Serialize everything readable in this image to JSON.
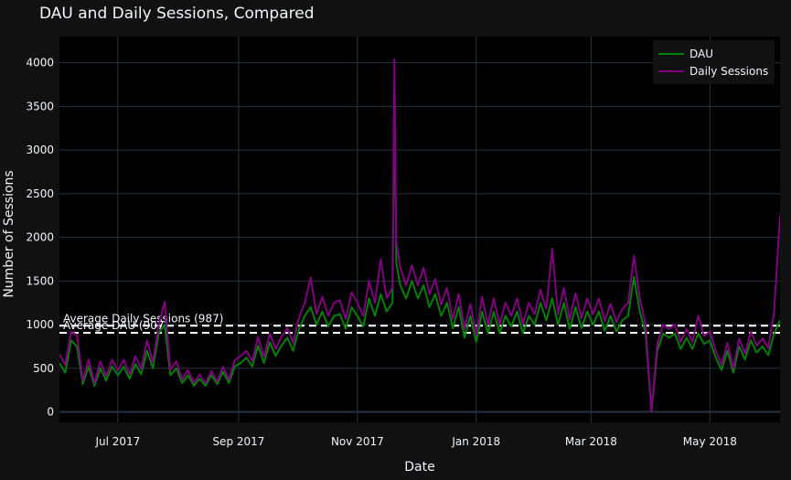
{
  "chart_data": {
    "type": "line",
    "title": "DAU and Daily Sessions, Compared",
    "xlabel": "Date",
    "ylabel": "Number of Sessions",
    "xlim": [
      "2017-06-01",
      "2018-06-06"
    ],
    "ylim": [
      -120,
      4300
    ],
    "x_ticks": [
      {
        "date": "2017-07-01",
        "label": "Jul 2017"
      },
      {
        "date": "2017-09-01",
        "label": "Sep 2017"
      },
      {
        "date": "2017-11-01",
        "label": "Nov 2017"
      },
      {
        "date": "2018-01-01",
        "label": "Jan 2018"
      },
      {
        "date": "2018-03-01",
        "label": "Mar 2018"
      },
      {
        "date": "2018-05-01",
        "label": "May 2018"
      }
    ],
    "y_ticks": [
      0,
      500,
      1000,
      1500,
      2000,
      2500,
      3000,
      3500,
      4000
    ],
    "grid": true,
    "legend_position": "top-right",
    "colors": {
      "dau": "#008000",
      "sessions": "#800080",
      "average_line": "#ffffff",
      "background": "#000000",
      "paper": "#111111",
      "grid": "#283442"
    },
    "series": [
      {
        "name": "DAU",
        "color": "#008000",
        "points": [
          [
            "2017-06-01",
            560
          ],
          [
            "2017-06-04",
            450
          ],
          [
            "2017-06-07",
            820
          ],
          [
            "2017-06-10",
            750
          ],
          [
            "2017-06-13",
            320
          ],
          [
            "2017-06-16",
            520
          ],
          [
            "2017-06-19",
            300
          ],
          [
            "2017-06-22",
            500
          ],
          [
            "2017-06-25",
            360
          ],
          [
            "2017-06-28",
            520
          ],
          [
            "2017-07-01",
            420
          ],
          [
            "2017-07-04",
            520
          ],
          [
            "2017-07-07",
            380
          ],
          [
            "2017-07-10",
            550
          ],
          [
            "2017-07-13",
            430
          ],
          [
            "2017-07-16",
            700
          ],
          [
            "2017-07-19",
            500
          ],
          [
            "2017-07-22",
            900
          ],
          [
            "2017-07-25",
            1000
          ],
          [
            "2017-07-28",
            420
          ],
          [
            "2017-07-31",
            500
          ],
          [
            "2017-08-03",
            330
          ],
          [
            "2017-08-06",
            420
          ],
          [
            "2017-08-09",
            300
          ],
          [
            "2017-08-12",
            380
          ],
          [
            "2017-08-15",
            300
          ],
          [
            "2017-08-18",
            420
          ],
          [
            "2017-08-21",
            320
          ],
          [
            "2017-08-24",
            460
          ],
          [
            "2017-08-27",
            330
          ],
          [
            "2017-08-30",
            520
          ],
          [
            "2017-09-02",
            560
          ],
          [
            "2017-09-05",
            620
          ],
          [
            "2017-09-08",
            520
          ],
          [
            "2017-09-11",
            760
          ],
          [
            "2017-09-14",
            560
          ],
          [
            "2017-09-17",
            800
          ],
          [
            "2017-09-20",
            640
          ],
          [
            "2017-09-23",
            760
          ],
          [
            "2017-09-26",
            850
          ],
          [
            "2017-09-29",
            700
          ],
          [
            "2017-10-02",
            950
          ],
          [
            "2017-10-05",
            1100
          ],
          [
            "2017-10-08",
            1200
          ],
          [
            "2017-10-11",
            1000
          ],
          [
            "2017-10-14",
            1150
          ],
          [
            "2017-10-17",
            980
          ],
          [
            "2017-10-20",
            1100
          ],
          [
            "2017-10-23",
            1120
          ],
          [
            "2017-10-26",
            950
          ],
          [
            "2017-10-29",
            1200
          ],
          [
            "2017-11-01",
            1100
          ],
          [
            "2017-11-04",
            980
          ],
          [
            "2017-11-07",
            1300
          ],
          [
            "2017-11-10",
            1100
          ],
          [
            "2017-11-13",
            1350
          ],
          [
            "2017-11-16",
            1150
          ],
          [
            "2017-11-19",
            1250
          ],
          [
            "2017-11-20",
            3650
          ],
          [
            "2017-11-21",
            1700
          ],
          [
            "2017-11-23",
            1450
          ],
          [
            "2017-11-26",
            1300
          ],
          [
            "2017-11-29",
            1500
          ],
          [
            "2017-12-02",
            1300
          ],
          [
            "2017-12-05",
            1450
          ],
          [
            "2017-12-08",
            1200
          ],
          [
            "2017-12-11",
            1350
          ],
          [
            "2017-12-14",
            1100
          ],
          [
            "2017-12-17",
            1250
          ],
          [
            "2017-12-20",
            960
          ],
          [
            "2017-12-23",
            1200
          ],
          [
            "2017-12-26",
            850
          ],
          [
            "2017-12-29",
            1100
          ],
          [
            "2018-01-01",
            800
          ],
          [
            "2018-01-04",
            1150
          ],
          [
            "2018-01-07",
            900
          ],
          [
            "2018-01-10",
            1150
          ],
          [
            "2018-01-13",
            900
          ],
          [
            "2018-01-16",
            1100
          ],
          [
            "2018-01-19",
            980
          ],
          [
            "2018-01-22",
            1150
          ],
          [
            "2018-01-25",
            900
          ],
          [
            "2018-01-28",
            1100
          ],
          [
            "2018-01-31",
            1000
          ],
          [
            "2018-02-03",
            1250
          ],
          [
            "2018-02-06",
            1050
          ],
          [
            "2018-02-09",
            1300
          ],
          [
            "2018-02-12",
            1000
          ],
          [
            "2018-02-15",
            1250
          ],
          [
            "2018-02-18",
            950
          ],
          [
            "2018-02-21",
            1200
          ],
          [
            "2018-02-24",
            960
          ],
          [
            "2018-02-27",
            1150
          ],
          [
            "2018-03-02",
            1000
          ],
          [
            "2018-03-05",
            1150
          ],
          [
            "2018-03-08",
            930
          ],
          [
            "2018-03-11",
            1100
          ],
          [
            "2018-03-14",
            920
          ],
          [
            "2018-03-17",
            1050
          ],
          [
            "2018-03-20",
            1100
          ],
          [
            "2018-03-23",
            1550
          ],
          [
            "2018-03-26",
            1150
          ],
          [
            "2018-03-29",
            900
          ],
          [
            "2018-04-01",
            0
          ],
          [
            "2018-04-04",
            700
          ],
          [
            "2018-04-07",
            900
          ],
          [
            "2018-04-10",
            850
          ],
          [
            "2018-04-13",
            900
          ],
          [
            "2018-04-16",
            720
          ],
          [
            "2018-04-19",
            850
          ],
          [
            "2018-04-22",
            720
          ],
          [
            "2018-04-25",
            900
          ],
          [
            "2018-04-28",
            780
          ],
          [
            "2018-05-01",
            820
          ],
          [
            "2018-05-04",
            620
          ],
          [
            "2018-05-07",
            480
          ],
          [
            "2018-05-10",
            700
          ],
          [
            "2018-05-13",
            450
          ],
          [
            "2018-05-16",
            750
          ],
          [
            "2018-05-19",
            600
          ],
          [
            "2018-05-22",
            820
          ],
          [
            "2018-05-25",
            680
          ],
          [
            "2018-05-28",
            750
          ],
          [
            "2018-05-31",
            650
          ],
          [
            "2018-06-03",
            900
          ],
          [
            "2018-06-06",
            1050
          ]
        ]
      },
      {
        "name": "Daily Sessions",
        "color": "#800080",
        "points": [
          [
            "2017-06-01",
            660
          ],
          [
            "2017-06-04",
            540
          ],
          [
            "2017-06-07",
            920
          ],
          [
            "2017-06-10",
            880
          ],
          [
            "2017-06-13",
            360
          ],
          [
            "2017-06-16",
            600
          ],
          [
            "2017-06-19",
            330
          ],
          [
            "2017-06-22",
            580
          ],
          [
            "2017-06-25",
            410
          ],
          [
            "2017-06-28",
            600
          ],
          [
            "2017-07-01",
            470
          ],
          [
            "2017-07-04",
            600
          ],
          [
            "2017-07-07",
            430
          ],
          [
            "2017-07-10",
            640
          ],
          [
            "2017-07-13",
            490
          ],
          [
            "2017-07-16",
            820
          ],
          [
            "2017-07-19",
            570
          ],
          [
            "2017-07-22",
            1000
          ],
          [
            "2017-07-25",
            1260
          ],
          [
            "2017-07-28",
            480
          ],
          [
            "2017-07-31",
            580
          ],
          [
            "2017-08-03",
            370
          ],
          [
            "2017-08-06",
            480
          ],
          [
            "2017-08-09",
            330
          ],
          [
            "2017-08-12",
            430
          ],
          [
            "2017-08-15",
            330
          ],
          [
            "2017-08-18",
            470
          ],
          [
            "2017-08-21",
            350
          ],
          [
            "2017-08-24",
            520
          ],
          [
            "2017-08-27",
            370
          ],
          [
            "2017-08-30",
            590
          ],
          [
            "2017-09-02",
            640
          ],
          [
            "2017-09-05",
            700
          ],
          [
            "2017-09-08",
            580
          ],
          [
            "2017-09-11",
            860
          ],
          [
            "2017-09-14",
            630
          ],
          [
            "2017-09-17",
            900
          ],
          [
            "2017-09-20",
            720
          ],
          [
            "2017-09-23",
            860
          ],
          [
            "2017-09-26",
            960
          ],
          [
            "2017-09-29",
            790
          ],
          [
            "2017-10-02",
            1080
          ],
          [
            "2017-10-05",
            1250
          ],
          [
            "2017-10-08",
            1540
          ],
          [
            "2017-10-11",
            1120
          ],
          [
            "2017-10-14",
            1320
          ],
          [
            "2017-10-17",
            1100
          ],
          [
            "2017-10-20",
            1250
          ],
          [
            "2017-10-23",
            1280
          ],
          [
            "2017-10-26",
            1060
          ],
          [
            "2017-10-29",
            1370
          ],
          [
            "2017-11-01",
            1250
          ],
          [
            "2017-11-04",
            1100
          ],
          [
            "2017-11-07",
            1500
          ],
          [
            "2017-11-10",
            1250
          ],
          [
            "2017-11-13",
            1750
          ],
          [
            "2017-11-16",
            1300
          ],
          [
            "2017-11-19",
            1420
          ],
          [
            "2017-11-20",
            4040
          ],
          [
            "2017-11-21",
            1950
          ],
          [
            "2017-11-23",
            1650
          ],
          [
            "2017-11-26",
            1450
          ],
          [
            "2017-11-29",
            1680
          ],
          [
            "2017-12-02",
            1450
          ],
          [
            "2017-12-05",
            1650
          ],
          [
            "2017-12-08",
            1350
          ],
          [
            "2017-12-11",
            1520
          ],
          [
            "2017-12-14",
            1230
          ],
          [
            "2017-12-17",
            1420
          ],
          [
            "2017-12-20",
            1060
          ],
          [
            "2017-12-23",
            1350
          ],
          [
            "2017-12-26",
            950
          ],
          [
            "2017-12-29",
            1240
          ],
          [
            "2018-01-01",
            880
          ],
          [
            "2018-01-04",
            1320
          ],
          [
            "2018-01-07",
            1000
          ],
          [
            "2018-01-10",
            1300
          ],
          [
            "2018-01-13",
            1000
          ],
          [
            "2018-01-16",
            1250
          ],
          [
            "2018-01-19",
            1100
          ],
          [
            "2018-01-22",
            1300
          ],
          [
            "2018-01-25",
            1000
          ],
          [
            "2018-01-28",
            1250
          ],
          [
            "2018-01-31",
            1120
          ],
          [
            "2018-02-03",
            1400
          ],
          [
            "2018-02-06",
            1180
          ],
          [
            "2018-02-09",
            1870
          ],
          [
            "2018-02-12",
            1120
          ],
          [
            "2018-02-15",
            1420
          ],
          [
            "2018-02-18",
            1060
          ],
          [
            "2018-02-21",
            1360
          ],
          [
            "2018-02-24",
            1070
          ],
          [
            "2018-02-27",
            1300
          ],
          [
            "2018-03-02",
            1120
          ],
          [
            "2018-03-05",
            1300
          ],
          [
            "2018-03-08",
            1040
          ],
          [
            "2018-03-11",
            1240
          ],
          [
            "2018-03-14",
            1030
          ],
          [
            "2018-03-17",
            1180
          ],
          [
            "2018-03-20",
            1250
          ],
          [
            "2018-03-23",
            1790
          ],
          [
            "2018-03-26",
            1300
          ],
          [
            "2018-03-29",
            1000
          ],
          [
            "2018-04-01",
            0
          ],
          [
            "2018-04-04",
            780
          ],
          [
            "2018-04-07",
            1000
          ],
          [
            "2018-04-10",
            950
          ],
          [
            "2018-04-13",
            1000
          ],
          [
            "2018-04-16",
            800
          ],
          [
            "2018-04-19",
            950
          ],
          [
            "2018-04-22",
            800
          ],
          [
            "2018-04-25",
            1100
          ],
          [
            "2018-04-28",
            870
          ],
          [
            "2018-05-01",
            920
          ],
          [
            "2018-05-04",
            700
          ],
          [
            "2018-05-07",
            540
          ],
          [
            "2018-05-10",
            790
          ],
          [
            "2018-05-13",
            500
          ],
          [
            "2018-05-16",
            840
          ],
          [
            "2018-05-19",
            670
          ],
          [
            "2018-05-22",
            920
          ],
          [
            "2018-05-25",
            760
          ],
          [
            "2018-05-28",
            840
          ],
          [
            "2018-05-31",
            730
          ],
          [
            "2018-06-03",
            1150
          ],
          [
            "2018-06-06",
            2250
          ]
        ]
      }
    ],
    "reference_lines": [
      {
        "y": 987,
        "label": "Average Daily Sessions (987)",
        "style": "dashed",
        "color": "#ffffff"
      },
      {
        "y": 907,
        "label": "Average DAU (907)",
        "style": "dashed",
        "color": "#ffffff"
      }
    ]
  }
}
